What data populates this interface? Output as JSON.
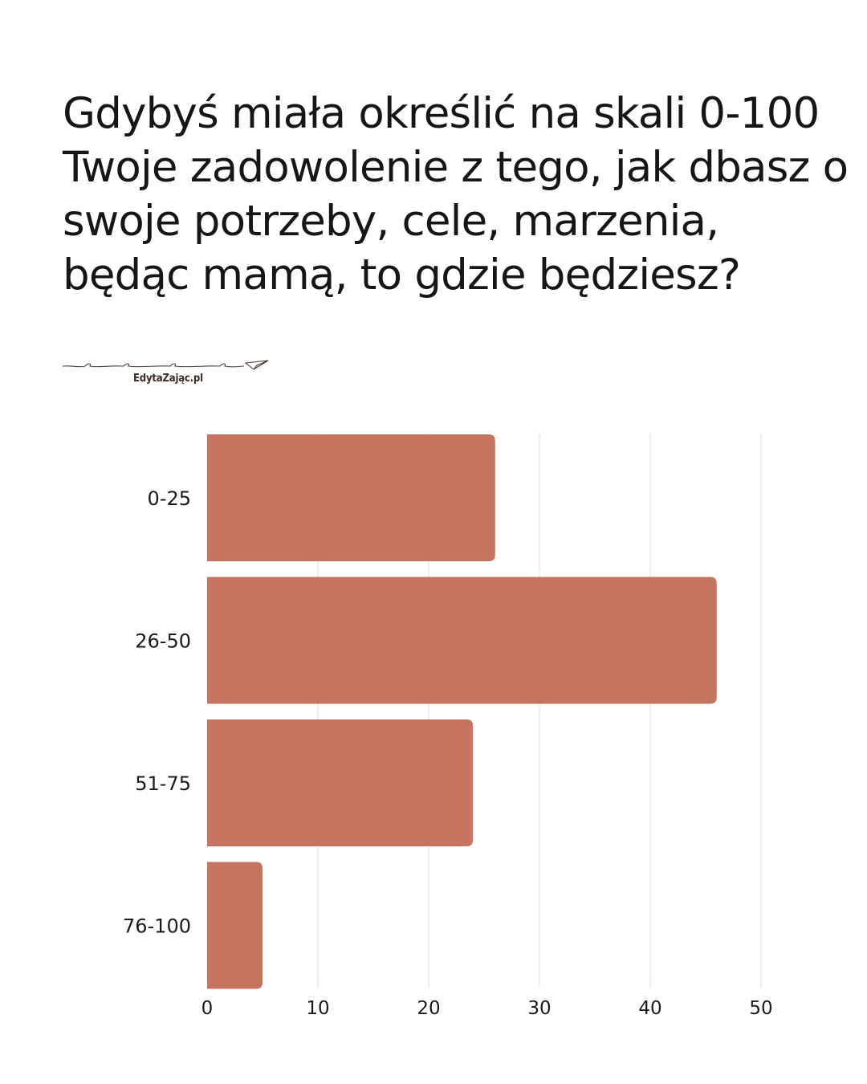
{
  "title": "Gdybyś miała określić na skali 0-100 Twoje zadowolenie z tego, jak dbasz o swoje potrzeby, cele, marzenia, będąc mamą, to gdzie będziesz?",
  "brand": "EdytaZając.pl",
  "chart_data": {
    "type": "bar",
    "orientation": "horizontal",
    "categories": [
      "0-25",
      "26-50",
      "51-75",
      "76-100"
    ],
    "values": [
      26,
      46,
      24,
      5
    ],
    "title": "",
    "xlabel": "",
    "ylabel": "",
    "xlim": [
      0,
      50
    ],
    "xticks": [
      0,
      10,
      20,
      30,
      40,
      50
    ],
    "grid": "vertical",
    "legend": "none",
    "bar_color": "#c5745f",
    "grid_color": "#dedede"
  }
}
